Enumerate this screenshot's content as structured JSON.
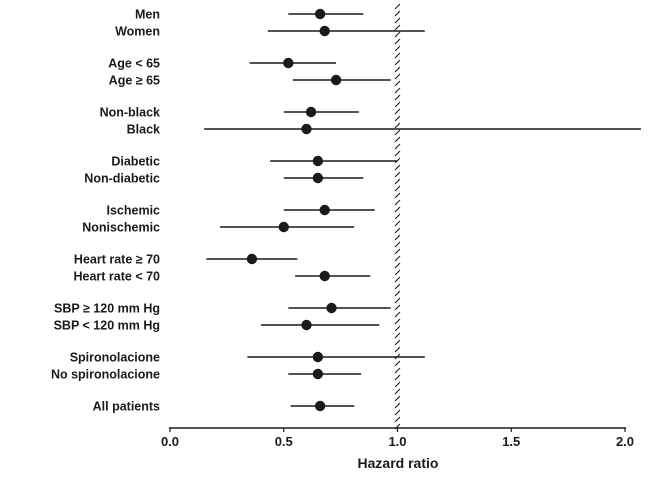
{
  "chart_data": {
    "type": "scatter",
    "subtype": "forest-plot",
    "title": "",
    "xlabel": "Hazard ratio",
    "ylabel": "",
    "xlim": [
      0.0,
      2.0
    ],
    "xticks": [
      0.0,
      0.5,
      1.0,
      1.5,
      2.0
    ],
    "reference_line": 1.0,
    "grid": false,
    "legend": "none",
    "groups": [
      {
        "rows": [
          {
            "label": "Men",
            "hr": 0.66,
            "ci": [
              0.52,
              0.85
            ]
          },
          {
            "label": "Women",
            "hr": 0.68,
            "ci": [
              0.43,
              1.12
            ]
          }
        ]
      },
      {
        "rows": [
          {
            "label": "Age < 65",
            "hr": 0.52,
            "ci": [
              0.35,
              0.73
            ]
          },
          {
            "label": "Age ≥ 65",
            "hr": 0.73,
            "ci": [
              0.54,
              0.97
            ]
          }
        ]
      },
      {
        "rows": [
          {
            "label": "Non-black",
            "hr": 0.62,
            "ci": [
              0.5,
              0.83
            ]
          },
          {
            "label": "Black",
            "hr": 0.6,
            "ci": [
              0.15,
              2.07
            ]
          }
        ]
      },
      {
        "rows": [
          {
            "label": "Diabetic",
            "hr": 0.65,
            "ci": [
              0.44,
              1.0
            ]
          },
          {
            "label": "Non-diabetic",
            "hr": 0.65,
            "ci": [
              0.5,
              0.85
            ]
          }
        ]
      },
      {
        "rows": [
          {
            "label": "Ischemic",
            "hr": 0.68,
            "ci": [
              0.5,
              0.9
            ]
          },
          {
            "label": "Nonischemic",
            "hr": 0.5,
            "ci": [
              0.22,
              0.81
            ]
          }
        ]
      },
      {
        "rows": [
          {
            "label": "Heart rate ≥ 70",
            "hr": 0.36,
            "ci": [
              0.16,
              0.56
            ]
          },
          {
            "label": "Heart rate < 70",
            "hr": 0.68,
            "ci": [
              0.55,
              0.88
            ]
          }
        ]
      },
      {
        "rows": [
          {
            "label": "SBP ≥ 120 mm Hg",
            "hr": 0.71,
            "ci": [
              0.52,
              0.97
            ]
          },
          {
            "label": "SBP < 120 mm Hg",
            "hr": 0.6,
            "ci": [
              0.4,
              0.92
            ]
          }
        ]
      },
      {
        "rows": [
          {
            "label": "Spironolacione",
            "hr": 0.65,
            "ci": [
              0.34,
              1.12
            ]
          },
          {
            "label": "No spironolacione",
            "hr": 0.65,
            "ci": [
              0.52,
              0.84
            ]
          }
        ]
      },
      {
        "rows": [
          {
            "label": "All patients",
            "hr": 0.66,
            "ci": [
              0.53,
              0.81
            ]
          }
        ]
      }
    ]
  },
  "colors": {
    "ink": "#1a1a1a",
    "background": "#ffffff"
  }
}
